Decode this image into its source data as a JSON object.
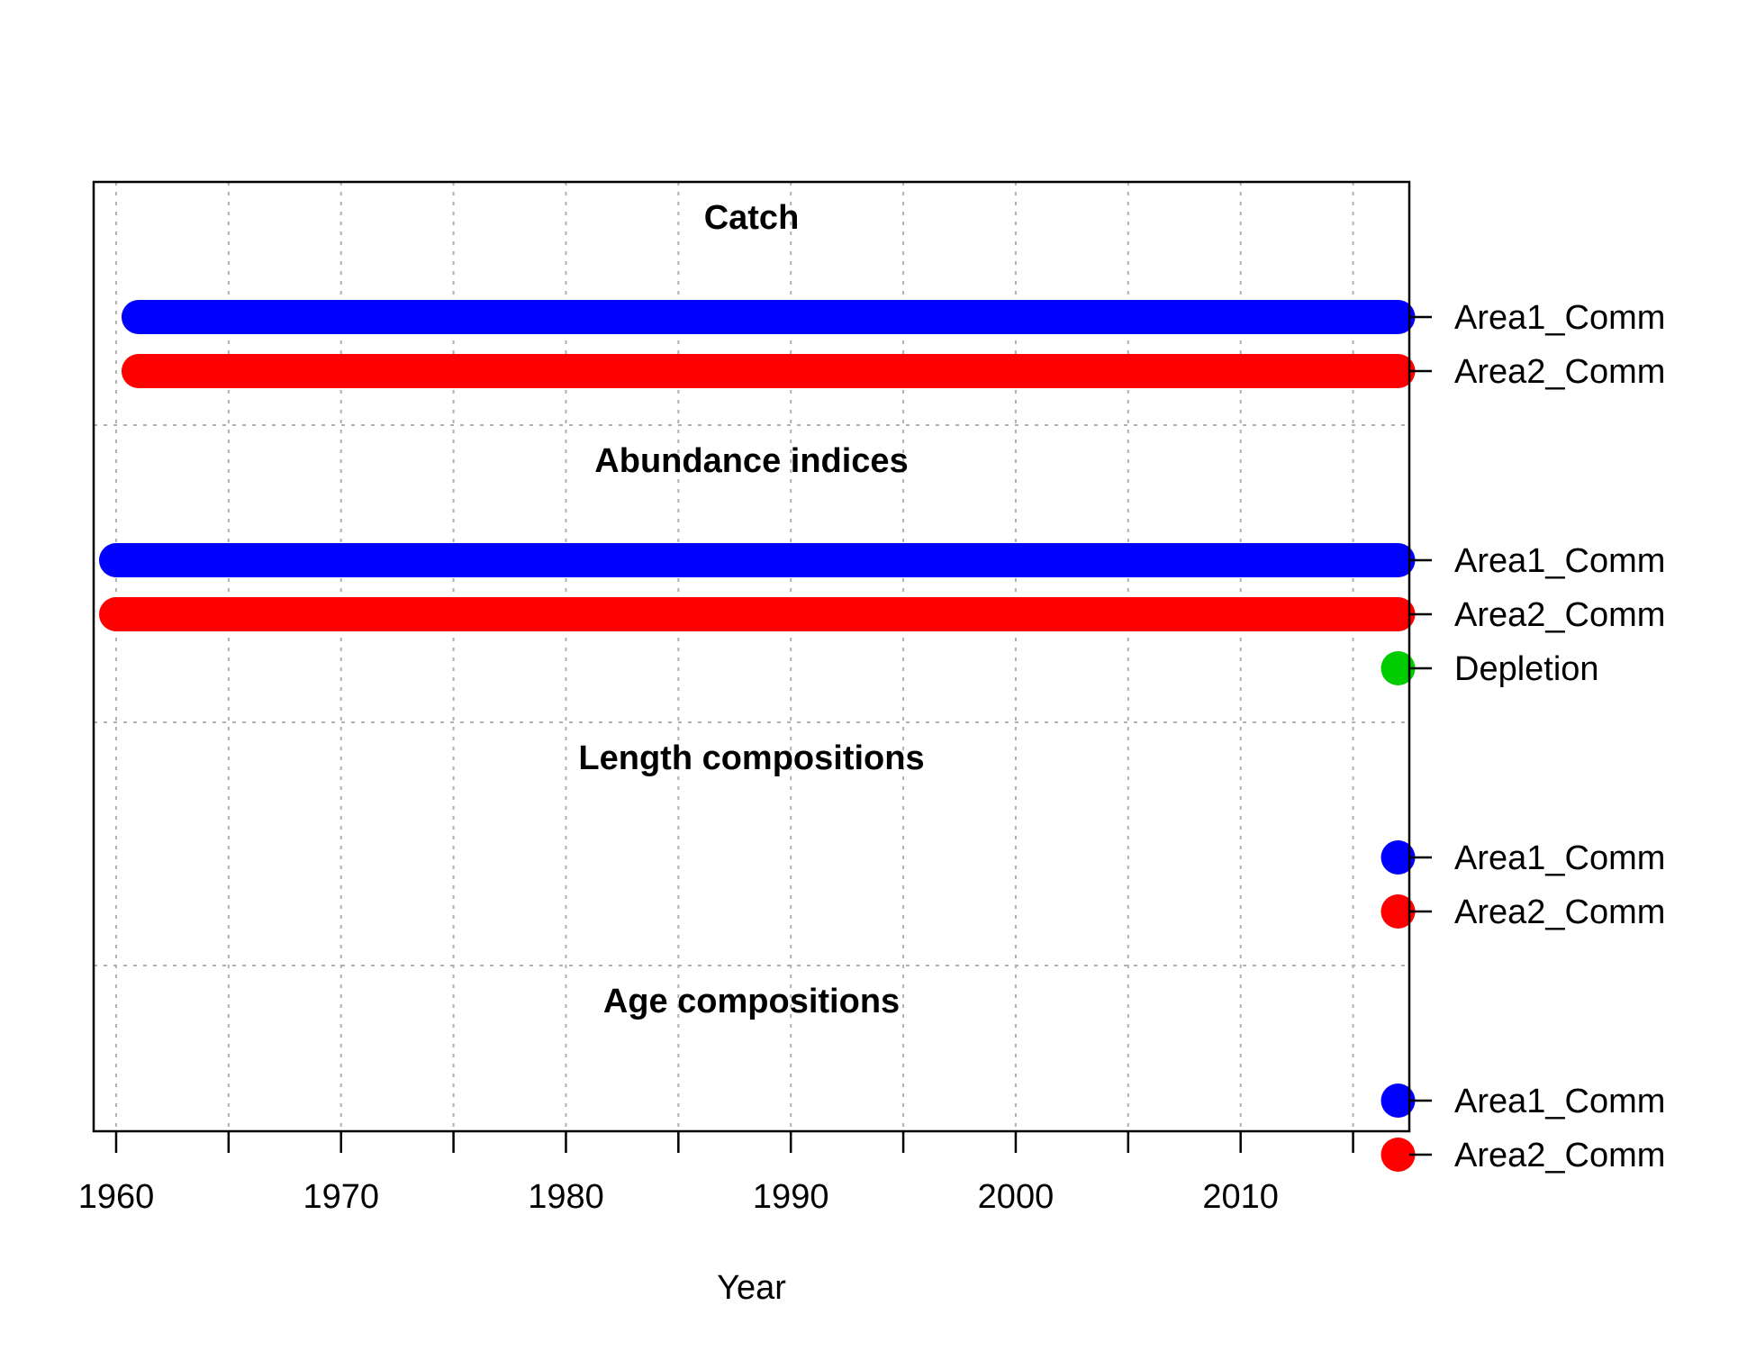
{
  "chart_data": {
    "type": "timeline",
    "xlabel": "Year",
    "xlim": [
      1959,
      2017.5
    ],
    "x_ticks": [
      1960,
      1965,
      1970,
      1975,
      1980,
      1985,
      1990,
      1995,
      2000,
      2005,
      2010,
      2015
    ],
    "x_tick_labels": [
      "1960",
      "1970",
      "1980",
      "1990",
      "2000",
      "2010"
    ],
    "grid": true,
    "colors": {
      "blue": "#0000ff",
      "red": "#ff0000",
      "green": "#00cc00"
    },
    "sections": [
      {
        "title": "Catch",
        "series": [
          {
            "name": "Area1_Comm",
            "color": "#0000ff",
            "start": 1961,
            "end": 2017
          },
          {
            "name": "Area2_Comm",
            "color": "#ff0000",
            "start": 1961,
            "end": 2017
          }
        ]
      },
      {
        "title": "Abundance indices",
        "series": [
          {
            "name": "Area1_Comm",
            "color": "#0000ff",
            "start": 1960,
            "end": 2017
          },
          {
            "name": "Area2_Comm",
            "color": "#ff0000",
            "start": 1960,
            "end": 2017
          },
          {
            "name": "Depletion",
            "color": "#00cc00",
            "start": 2017,
            "end": 2017
          }
        ]
      },
      {
        "title": "Length compositions",
        "series": [
          {
            "name": "Area1_Comm",
            "color": "#0000ff",
            "start": 2017,
            "end": 2017
          },
          {
            "name": "Area2_Comm",
            "color": "#ff0000",
            "start": 2017,
            "end": 2017
          }
        ]
      },
      {
        "title": "Age compositions",
        "series": [
          {
            "name": "Area1_Comm",
            "color": "#0000ff",
            "start": 2017,
            "end": 2017
          },
          {
            "name": "Area2_Comm",
            "color": "#ff0000",
            "start": 2017,
            "end": 2017
          }
        ]
      }
    ]
  }
}
